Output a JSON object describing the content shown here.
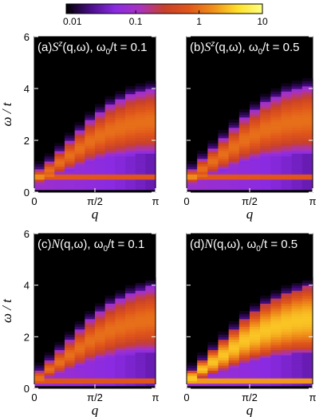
{
  "colorbar": {
    "scale": "log",
    "range": [
      0.008,
      10
    ],
    "tick_values": [
      0.01,
      0.1,
      1,
      10
    ],
    "tick_labels": [
      "0.01",
      "0.1",
      "1",
      "10"
    ],
    "colors": [
      "#000000",
      "#4a0e8a",
      "#8a2be2",
      "#a832c0",
      "#c8402a",
      "#e0561a",
      "#f0901a",
      "#ffe02a",
      "#ffff80"
    ]
  },
  "axes": {
    "xlabel": "q",
    "ylabel": "ω / t",
    "xlim": [
      0,
      3.1416
    ],
    "ylim": [
      0,
      6
    ],
    "xtick_values": [
      0,
      1.5708,
      3.1416
    ],
    "xtick_labels": [
      "0",
      "π/2",
      "π"
    ],
    "ytick_values": [
      0,
      2,
      4,
      6
    ],
    "ytick_labels": [
      "0",
      "2",
      "4",
      "6"
    ]
  },
  "chart_data": [
    {
      "type": "heatmap",
      "label": "(a)",
      "title": "S^z(q,ω), ω0/t = 0.1",
      "title_parts": [
        "(a)",
        "S",
        "z",
        "(q,ω), ω",
        "0",
        "/t = 0.1"
      ],
      "q_points": 12,
      "branch_top": [
        0.9,
        1.2,
        1.6,
        2.0,
        2.4,
        2.8,
        3.1,
        3.4,
        3.6,
        3.8,
        3.9,
        4.0
      ],
      "branch_bottom": [
        0.3,
        0.5,
        0.7,
        0.85,
        1.0,
        1.15,
        1.25,
        1.35,
        1.4,
        1.45,
        1.5,
        1.5
      ],
      "low_band_omega": 0.6,
      "peak_intensity": 2
    },
    {
      "type": "heatmap",
      "label": "(b)",
      "title": "S^z(q,ω), ω0/t = 0.5",
      "title_parts": [
        "(b)",
        "S",
        "z",
        "(q,ω), ω",
        "0",
        "/t = 0.5"
      ],
      "q_points": 12,
      "branch_top": [
        0.9,
        1.3,
        1.7,
        2.1,
        2.5,
        2.9,
        3.2,
        3.5,
        3.7,
        3.9,
        4.0,
        4.1
      ],
      "branch_bottom": [
        0.3,
        0.5,
        0.7,
        0.85,
        1.0,
        1.15,
        1.25,
        1.35,
        1.4,
        1.45,
        1.5,
        1.5
      ],
      "low_band_omega": 0.6,
      "peak_intensity": 2
    },
    {
      "type": "heatmap",
      "label": "(c)",
      "title": "N(q,ω), ω0/t = 0.1",
      "title_parts": [
        "(c)",
        "N",
        "",
        "(q,ω), ω",
        "0",
        "/t = 0.1"
      ],
      "q_points": 12,
      "branch_top": [
        0.7,
        1.1,
        1.5,
        1.9,
        2.3,
        2.7,
        3.0,
        3.3,
        3.5,
        3.7,
        3.85,
        3.95
      ],
      "branch_bottom": [
        0.2,
        0.4,
        0.55,
        0.7,
        0.85,
        1.0,
        1.1,
        1.2,
        1.3,
        1.35,
        1.4,
        1.4
      ],
      "low_band_omega": 0.3,
      "peak_intensity": 2
    },
    {
      "type": "heatmap",
      "label": "(d)",
      "title": "N(q,ω), ω0/t = 0.5",
      "title_parts": [
        "(d)",
        "N",
        "",
        "(q,ω), ω",
        "0",
        "/t = 0.5"
      ],
      "q_points": 12,
      "branch_top": [
        0.7,
        1.1,
        1.5,
        1.9,
        2.3,
        2.7,
        3.0,
        3.3,
        3.5,
        3.7,
        3.85,
        3.95
      ],
      "branch_bottom": [
        0.2,
        0.4,
        0.55,
        0.7,
        0.85,
        1.0,
        1.1,
        1.2,
        1.3,
        1.35,
        1.4,
        1.4
      ],
      "low_band_omega": 0.3,
      "peak_intensity": 6
    }
  ]
}
